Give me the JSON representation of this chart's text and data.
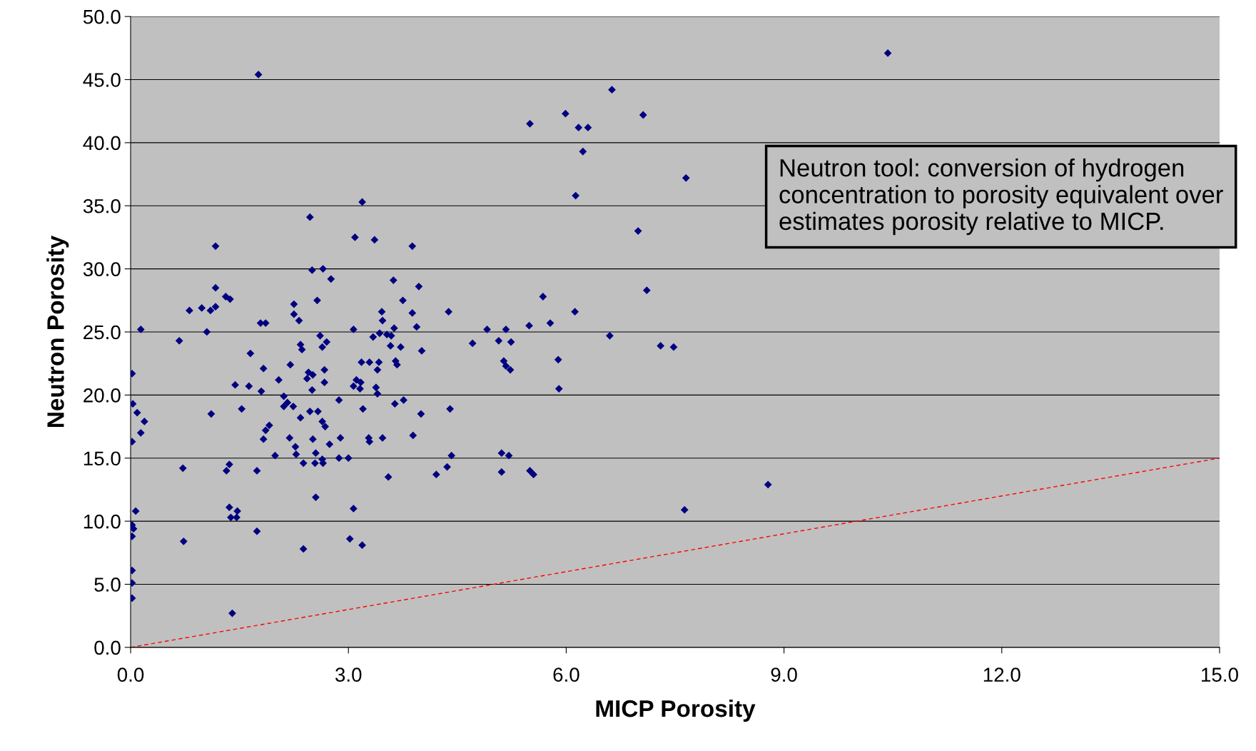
{
  "chart_data": {
    "type": "scatter",
    "xlabel": "MICP Porosity",
    "ylabel": "Neutron Porosity",
    "xlim": [
      0,
      15
    ],
    "xticks": [
      {
        "value": 0,
        "label": "0.0"
      },
      {
        "value": 3,
        "label": "3.0"
      },
      {
        "value": 6,
        "label": "6.0"
      },
      {
        "value": 9,
        "label": "9.0"
      },
      {
        "value": 12,
        "label": "12.0"
      },
      {
        "value": 15,
        "label": "15.0"
      }
    ],
    "ylim": [
      0,
      50
    ],
    "yticks": [
      {
        "value": 0,
        "label": "0.0"
      },
      {
        "value": 5,
        "label": "5.0"
      },
      {
        "value": 10,
        "label": "10.0"
      },
      {
        "value": 15,
        "label": "15.0"
      },
      {
        "value": 20,
        "label": "20.0"
      },
      {
        "value": 25,
        "label": "25.0"
      },
      {
        "value": 30,
        "label": "30.0"
      },
      {
        "value": 35,
        "label": "35.0"
      },
      {
        "value": 40,
        "label": "40.0"
      },
      {
        "value": 45,
        "label": "45.0"
      },
      {
        "value": 50,
        "label": "50.0"
      }
    ],
    "grid": "y",
    "legend": false,
    "marker": "diamond",
    "annotations": [
      "Neutron tool: conversion of hydrogen concentration to porosity equivalent over estimates porosity relative to MICP."
    ],
    "series": [
      {
        "type": "scatter",
        "color": "#000080",
        "x": [
          10.43,
          1.76,
          6.63,
          5.99,
          7.06,
          5.5,
          6.17,
          6.3,
          6.23,
          7.65,
          6.13,
          3.19,
          2.47,
          6.99,
          3.09,
          3.36,
          1.17,
          3.88,
          2.65,
          2.5,
          2.76,
          3.62,
          3.97,
          7.11,
          1.17,
          1.31,
          1.37,
          2.57,
          5.68,
          3.75,
          2.25,
          1.17,
          0.98,
          0.81,
          1.1,
          3.46,
          6.12,
          4.38,
          2.25,
          3.88,
          2.32,
          3.47,
          5.78,
          1.79,
          1.86,
          5.49,
          3.63,
          3.94,
          4.91,
          3.07,
          5.17,
          0.14,
          1.05,
          3.34,
          3.53,
          3.43,
          6.6,
          2.61,
          0.67,
          5.07,
          5.24,
          3.59,
          4.71,
          7.3,
          7.48,
          2.34,
          2.7,
          2.64,
          2.36,
          3.58,
          3.72,
          4.01,
          1.65,
          5.89,
          3.18,
          3.29,
          3.42,
          5.14,
          3.65,
          3.67,
          5.17,
          2.2,
          1.83,
          5.23,
          2.67,
          3.4,
          0.02,
          2.45,
          2.51,
          2.43,
          2.04,
          3.11,
          3.17,
          2.67,
          1.44,
          1.63,
          3.07,
          3.16,
          3.38,
          2.5,
          5.9,
          1.8,
          3.4,
          2.11,
          2.16,
          2.87,
          3.76,
          3.64,
          0.03,
          2.11,
          2.24,
          0.09,
          2.58,
          4.4,
          3.2,
          1.53,
          1.11,
          2.47,
          4.0,
          2.34,
          0.19,
          2.64,
          1.91,
          2.68,
          1.86,
          0.14,
          3.89,
          2.89,
          2.19,
          3.28,
          3.47,
          1.83,
          2.51,
          3.29,
          0.02,
          2.74,
          2.27,
          2.28,
          1.99,
          2.55,
          3.0,
          4.42,
          5.11,
          5.21,
          2.87,
          2.64,
          2.65,
          2.54,
          2.38,
          1.36,
          4.36,
          0.72,
          1.32,
          1.74,
          5.11,
          5.5,
          5.55,
          4.21,
          3.55,
          8.78,
          2.55,
          0.07,
          1.36,
          3.07,
          7.63,
          1.47,
          1.38,
          1.46,
          0.02,
          0.04,
          1.74,
          0.02,
          3.02,
          0.73,
          3.19,
          2.38,
          0.02,
          0.02,
          0.02,
          1.4
        ],
        "values": [
          47.1,
          45.4,
          44.2,
          42.3,
          42.2,
          41.5,
          41.2,
          41.2,
          39.3,
          37.2,
          35.8,
          35.3,
          34.1,
          33.0,
          32.5,
          32.3,
          31.8,
          31.8,
          30.0,
          29.9,
          29.2,
          29.1,
          28.6,
          28.3,
          28.5,
          27.8,
          27.6,
          27.5,
          27.8,
          27.5,
          27.2,
          27.0,
          26.9,
          26.7,
          26.7,
          26.6,
          26.6,
          26.6,
          26.4,
          26.5,
          25.9,
          25.9,
          25.7,
          25.7,
          25.7,
          25.5,
          25.3,
          25.4,
          25.2,
          25.2,
          25.2,
          25.2,
          25.0,
          24.6,
          24.8,
          24.9,
          24.7,
          24.7,
          24.3,
          24.3,
          24.2,
          24.7,
          24.1,
          23.9,
          23.8,
          24.0,
          24.2,
          23.8,
          23.6,
          23.9,
          23.8,
          23.5,
          23.3,
          22.8,
          22.6,
          22.6,
          22.6,
          22.7,
          22.7,
          22.4,
          22.3,
          22.4,
          22.1,
          22.0,
          22.0,
          22.0,
          21.7,
          21.8,
          21.6,
          21.3,
          21.2,
          21.2,
          21.0,
          21.0,
          20.8,
          20.7,
          20.7,
          20.5,
          20.6,
          20.4,
          20.5,
          20.3,
          20.1,
          19.9,
          19.4,
          19.6,
          19.6,
          19.3,
          19.3,
          19.1,
          19.1,
          18.6,
          18.7,
          18.9,
          18.9,
          18.9,
          18.5,
          18.7,
          18.5,
          18.2,
          17.9,
          17.9,
          17.6,
          17.5,
          17.2,
          17.0,
          16.8,
          16.6,
          16.6,
          16.6,
          16.6,
          16.5,
          16.5,
          16.3,
          16.3,
          16.1,
          15.9,
          15.3,
          15.2,
          15.4,
          15.0,
          15.2,
          15.4,
          15.2,
          15.0,
          14.9,
          14.6,
          14.6,
          14.6,
          14.5,
          14.3,
          14.2,
          14.0,
          14.0,
          13.9,
          14.0,
          13.7,
          13.7,
          13.5,
          12.9,
          11.9,
          10.8,
          11.1,
          11.0,
          10.9,
          10.8,
          10.3,
          10.3,
          9.7,
          9.4,
          9.2,
          8.8,
          8.6,
          8.4,
          8.1,
          7.8,
          6.1,
          5.1,
          3.9,
          2.7
        ]
      },
      {
        "type": "line",
        "color": "#ff0000",
        "line_style": "dashed",
        "marker": "none",
        "x": [
          0,
          15
        ],
        "values": [
          0,
          15
        ]
      }
    ]
  }
}
